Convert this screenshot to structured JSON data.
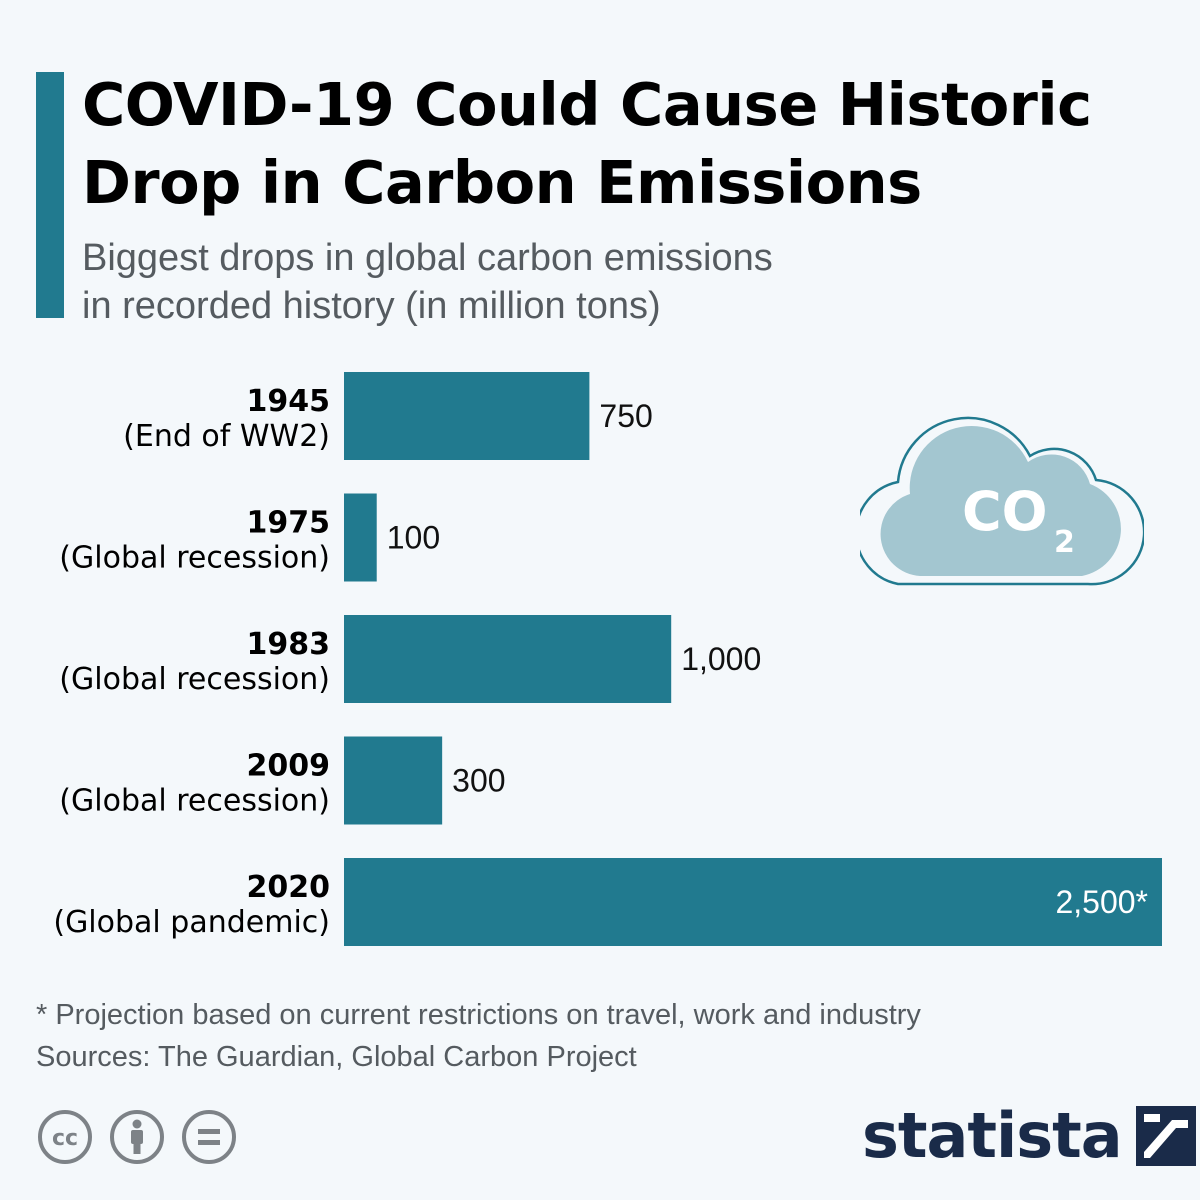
{
  "header": {
    "title": "COVID-19 Could Cause Historic Drop in Carbon Emissions",
    "subtitle_lines": [
      "Biggest drops in global carbon emissions",
      "in recorded history (in million tons)"
    ]
  },
  "colors": {
    "accent": "#217a8f",
    "bar": "#217a8f",
    "cloud": "#a3c6d0",
    "brand": "#1a2b49"
  },
  "chart_data": {
    "type": "bar",
    "orientation": "horizontal",
    "title": "Biggest drops in global carbon emissions in recorded history (in million tons)",
    "categories": [
      {
        "year": "1945",
        "desc": "(End of WW2)"
      },
      {
        "year": "1975",
        "desc": "(Global recession)"
      },
      {
        "year": "1983",
        "desc": "(Global recession)"
      },
      {
        "year": "2009",
        "desc": "(Global recession)"
      },
      {
        "year": "2020",
        "desc": "(Global pandemic)"
      }
    ],
    "values": [
      750,
      100,
      1000,
      300,
      2500
    ],
    "value_labels": [
      "750",
      "100",
      "1,000",
      "300",
      "2,500*"
    ],
    "xlim": [
      0,
      2500
    ],
    "xlabel": "",
    "ylabel": "",
    "grid": false
  },
  "illustration": {
    "cloud_text": "CO",
    "cloud_sub": "2",
    "icon": "co2-cloud-icon"
  },
  "footer": {
    "note": "* Projection based on current restrictions on travel, work and industry",
    "sources": "Sources: The Guardian, Global Carbon Project",
    "license_icons": [
      "cc-icon",
      "attribution-icon",
      "no-derivatives-icon"
    ],
    "cc_text": "cc",
    "brand": "statista"
  }
}
